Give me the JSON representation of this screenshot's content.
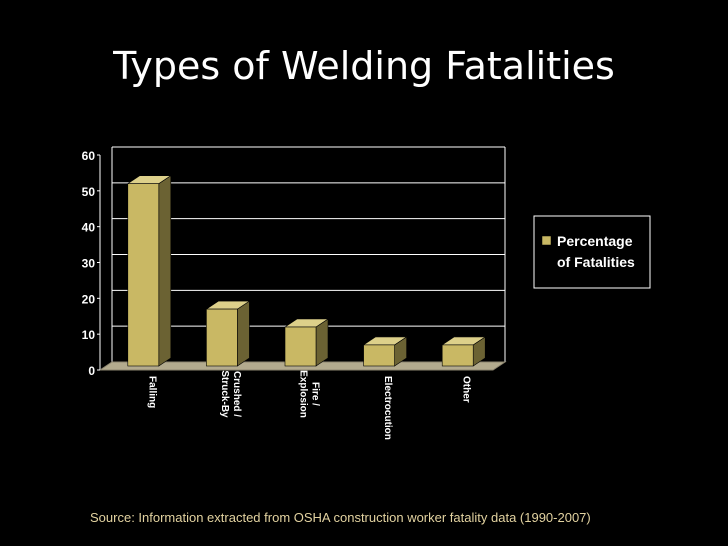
{
  "slide": {
    "title": "Types of Welding Fatalities",
    "source": "Source: Information extracted from OSHA construction worker fatality data (1990-2007)"
  },
  "colors": {
    "background": "#000000",
    "bar_front": "#c9b864",
    "bar_side": "#6b6233",
    "bar_top": "#ddd08a",
    "floor": "#b3ab8e",
    "text": "#ffffff",
    "source_text": "#e2d2a0"
  },
  "chart_data": {
    "type": "bar",
    "categories": [
      "Falling",
      "Crushed / Struck-By",
      "Fire / Explosion",
      "Electrocution",
      "Other"
    ],
    "series": [
      {
        "name": "Percentage of Fatalities",
        "values": [
          52,
          17,
          12,
          7,
          7
        ]
      }
    ],
    "ylim": [
      0,
      60
    ],
    "yticks": [
      0,
      10,
      20,
      30,
      40,
      50,
      60
    ],
    "grid": true,
    "legend": "right",
    "xlabel": "",
    "ylabel": ""
  }
}
